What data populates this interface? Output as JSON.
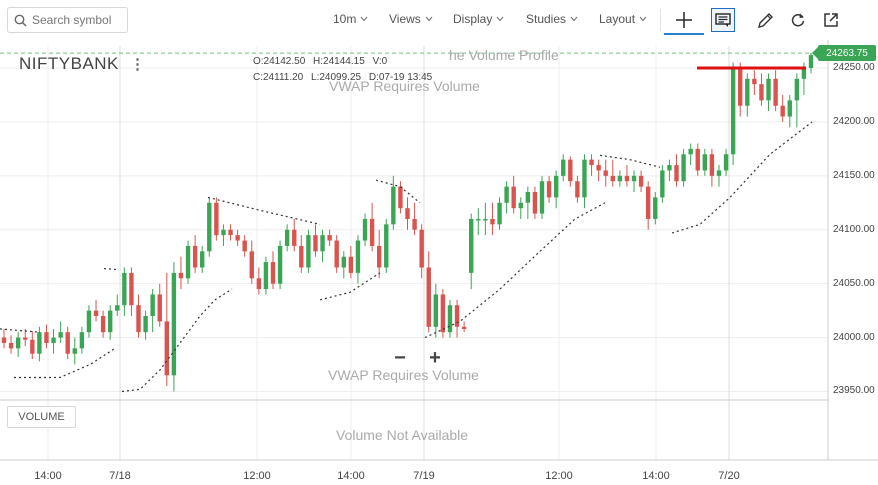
{
  "toolbar": {
    "search_placeholder": "Search symbol",
    "interval_label": "10m",
    "views_label": "Views",
    "display_label": "Display",
    "studies_label": "Studies",
    "layout_label": "Layout",
    "tools": [
      "crosshair-icon",
      "annotation-icon",
      "draw-icon",
      "reset-icon",
      "popout-icon"
    ]
  },
  "chart": {
    "symbol": "NIFTYBANK",
    "ohlc": {
      "open": "O:24142.50",
      "high": "H:24144.15",
      "volume": "V:0",
      "close": "C:24111.20",
      "low": "L:24099.25",
      "date": "D:07-19 13:45"
    },
    "ghost_volume_profile": "he Volume Profile",
    "ghost_vwap_top": "VWAP Requires Volume",
    "ghost_vwap_bottom": "VWAP Requires Volume",
    "ghost_volume_na": "Volume Not Available",
    "last_price": "24263.75",
    "volume_button": "VOLUME",
    "zoom_out_label": "−",
    "zoom_in_label": "+",
    "price_axis": [
      "24250.00",
      "24200.00",
      "24150.00",
      "24100.00",
      "24050.00",
      "24000.00",
      "23950.00"
    ],
    "time_axis": [
      "14:00",
      "7/18",
      "12:00",
      "14:00",
      "7/19",
      "12:00",
      "14:00",
      "7/20"
    ],
    "colors": {
      "up": "#3aa655",
      "down": "#d9534f",
      "last_price_line": "#3aa655",
      "resistance": "#e01010"
    }
  },
  "chart_data": {
    "type": "candlestick",
    "ylim": [
      23945,
      24270
    ],
    "candles": [
      [
        24000,
        24008,
        23990,
        23995
      ],
      [
        23995,
        24002,
        23985,
        23990
      ],
      [
        23990,
        24005,
        23982,
        24000
      ],
      [
        24000,
        24008,
        23992,
        23998
      ],
      [
        23998,
        24006,
        23980,
        23985
      ],
      [
        23985,
        24010,
        23978,
        24005
      ],
      [
        24005,
        24012,
        23990,
        23995
      ],
      [
        23995,
        24008,
        23985,
        24000
      ],
      [
        24000,
        24015,
        23995,
        24005
      ],
      [
        24005,
        24010,
        23980,
        23985
      ],
      [
        23985,
        24000,
        23975,
        23990
      ],
      [
        23990,
        24010,
        23985,
        24005
      ],
      [
        24005,
        24030,
        24000,
        24025
      ],
      [
        24025,
        24035,
        24015,
        24020
      ],
      [
        24020,
        24025,
        24000,
        24005
      ],
      [
        24005,
        24030,
        23998,
        24025
      ],
      [
        24025,
        24040,
        24020,
        24030
      ],
      [
        24030,
        24065,
        24020,
        24060
      ],
      [
        24060,
        24065,
        24020,
        24030
      ],
      [
        24030,
        24040,
        24000,
        24005
      ],
      [
        24005,
        24025,
        23998,
        24020
      ],
      [
        24020,
        24045,
        24005,
        24040
      ],
      [
        24040,
        24050,
        24010,
        24015
      ],
      [
        24015,
        24060,
        23955,
        23965
      ],
      [
        23965,
        24070,
        23950,
        24060
      ],
      [
        24060,
        24075,
        24045,
        24055
      ],
      [
        24055,
        24090,
        24050,
        24085
      ],
      [
        24085,
        24095,
        24060,
        24065
      ],
      [
        24065,
        24085,
        24060,
        24080
      ],
      [
        24080,
        24130,
        24075,
        24125
      ],
      [
        24125,
        24130,
        24090,
        24095
      ],
      [
        24095,
        24105,
        24085,
        24100
      ],
      [
        24100,
        24105,
        24090,
        24095
      ],
      [
        24095,
        24100,
        24085,
        24090
      ],
      [
        24090,
        24095,
        24075,
        24080
      ],
      [
        24080,
        24090,
        24050,
        24055
      ],
      [
        24055,
        24065,
        24040,
        24045
      ],
      [
        24045,
        24075,
        24040,
        24070
      ],
      [
        24070,
        24080,
        24045,
        24050
      ],
      [
        24050,
        24090,
        24045,
        24085
      ],
      [
        24085,
        24105,
        24080,
        24100
      ],
      [
        24100,
        24110,
        24080,
        24085
      ],
      [
        24085,
        24095,
        24060,
        24065
      ],
      [
        24065,
        24100,
        24060,
        24095
      ],
      [
        24095,
        24105,
        24075,
        24080
      ],
      [
        24080,
        24100,
        24070,
        24095
      ],
      [
        24095,
        24100,
        24085,
        24090
      ],
      [
        24090,
        24095,
        24060,
        24065
      ],
      [
        24065,
        24080,
        24055,
        24075
      ],
      [
        24075,
        24085,
        24055,
        24060
      ],
      [
        24060,
        24095,
        24050,
        24090
      ],
      [
        24090,
        24115,
        24085,
        24110
      ],
      [
        24110,
        24125,
        24080,
        24085
      ],
      [
        24085,
        24100,
        24055,
        24065
      ],
      [
        24065,
        24110,
        24060,
        24105
      ],
      [
        24105,
        24150,
        24100,
        24140
      ],
      [
        24140,
        24145,
        24115,
        24120
      ],
      [
        24120,
        24130,
        24100,
        24110
      ],
      [
        24110,
        24125,
        24095,
        24100
      ],
      [
        24100,
        24105,
        24055,
        24065
      ],
      [
        24065,
        24080,
        24005,
        24010
      ],
      [
        24010,
        24050,
        24000,
        24040
      ],
      [
        24040,
        24045,
        24000,
        24005
      ],
      [
        24005,
        24035,
        24000,
        24030
      ],
      [
        24030,
        24035,
        24000,
        24010
      ],
      [
        24010,
        24015,
        24005,
        24008
      ],
      [
        24060,
        24115,
        24045,
        24110
      ],
      [
        24110,
        24120,
        24095,
        24110
      ],
      [
        24110,
        24125,
        24095,
        24110
      ],
      [
        24110,
        24125,
        24095,
        24105
      ],
      [
        24105,
        24130,
        24100,
        24125
      ],
      [
        24125,
        24145,
        24115,
        24140
      ],
      [
        24140,
        24150,
        24115,
        24120
      ],
      [
        24120,
        24130,
        24110,
        24125
      ],
      [
        24125,
        24140,
        24110,
        24135
      ],
      [
        24135,
        24140,
        24110,
        24115
      ],
      [
        24115,
        24150,
        24110,
        24145
      ],
      [
        24145,
        24150,
        24125,
        24130
      ],
      [
        24130,
        24155,
        24120,
        24150
      ],
      [
        24150,
        24170,
        24145,
        24165
      ],
      [
        24165,
        24168,
        24140,
        24145
      ],
      [
        24145,
        24150,
        24125,
        24130
      ],
      [
        24130,
        24170,
        24120,
        24165
      ],
      [
        24165,
        24170,
        24150,
        24160
      ],
      [
        24160,
        24165,
        24145,
        24155
      ],
      [
        24155,
        24165,
        24140,
        24150
      ],
      [
        24150,
        24165,
        24140,
        24145
      ],
      [
        24145,
        24155,
        24140,
        24150
      ],
      [
        24150,
        24160,
        24140,
        24145
      ],
      [
        24145,
        24155,
        24135,
        24150
      ],
      [
        24150,
        24155,
        24135,
        24140
      ],
      [
        24140,
        24145,
        24100,
        24110
      ],
      [
        24110,
        24135,
        24105,
        24130
      ],
      [
        24130,
        24160,
        24125,
        24155
      ],
      [
        24155,
        24165,
        24145,
        24160
      ],
      [
        24160,
        24170,
        24140,
        24145
      ],
      [
        24145,
        24175,
        24140,
        24170
      ],
      [
        24170,
        24180,
        24160,
        24175
      ],
      [
        24175,
        24180,
        24150,
        24155
      ],
      [
        24155,
        24175,
        24150,
        24170
      ],
      [
        24170,
        24175,
        24140,
        24150
      ],
      [
        24150,
        24160,
        24140,
        24155
      ],
      [
        24155,
        24175,
        24150,
        24170
      ],
      [
        24170,
        24255,
        24160,
        24250
      ],
      [
        24250,
        24255,
        24205,
        24215
      ],
      [
        24215,
        24245,
        24205,
        24240
      ],
      [
        24240,
        24248,
        24225,
        24235
      ],
      [
        24235,
        24245,
        24215,
        24220
      ],
      [
        24220,
        24245,
        24210,
        24240
      ],
      [
        24240,
        24248,
        24210,
        24215
      ],
      [
        24215,
        24225,
        24200,
        24205
      ],
      [
        24205,
        24225,
        24195,
        24220
      ],
      [
        24220,
        24245,
        24195,
        24240
      ],
      [
        24240,
        24255,
        24225,
        24250
      ],
      [
        24250,
        24264,
        24245,
        24262
      ]
    ]
  }
}
